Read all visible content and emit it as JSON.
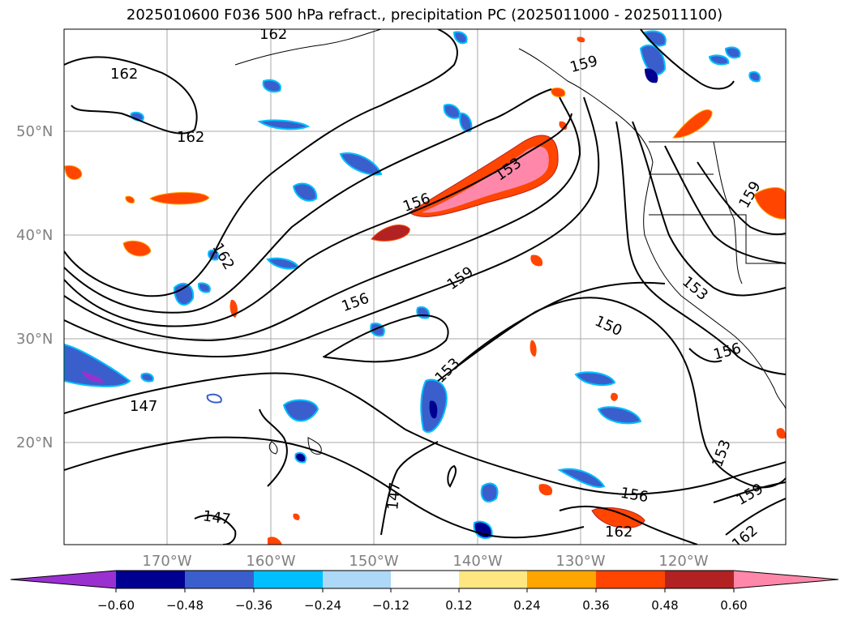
{
  "title": "2025010600 F036 500 hPa refract., precipitation PC (2025011000 - 2025011100)",
  "lat_labels": [
    "50°N",
    "40°N",
    "30°N",
    "20°N"
  ],
  "lon_labels": [
    "170°W",
    "160°W",
    "150°W",
    "140°W",
    "130°W",
    "120°W"
  ],
  "contour_labels": [
    "162",
    "162",
    "162",
    "162",
    "159",
    "159",
    "159",
    "156",
    "156",
    "156",
    "156",
    "153",
    "153",
    "153",
    "153",
    "150",
    "147",
    "147",
    "147",
    "162",
    "159",
    "162",
    "162"
  ],
  "colorbar": {
    "ticks": [
      "−0.60",
      "−0.48",
      "−0.36",
      "−0.24",
      "−0.12",
      "0.12",
      "0.24",
      "0.36",
      "0.48",
      "0.60"
    ],
    "colors": [
      "#9b30d0",
      "#000090",
      "#3a5fcd",
      "#00bfff",
      "#add8f7",
      "#ffffff",
      "#ffe680",
      "#ffa500",
      "#ff4500",
      "#b22222",
      "#ff88aa"
    ]
  }
}
